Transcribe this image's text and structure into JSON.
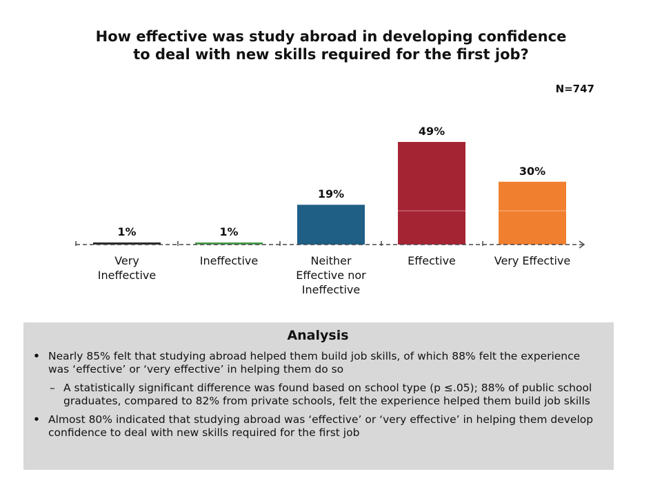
{
  "title_line1": "How effective was study abroad in developing confidence",
  "title_line2": "to deal with new skills required for the first job?",
  "n_label": "N=747",
  "chart_data": {
    "type": "bar",
    "categories": [
      [
        "Very",
        "Ineffective"
      ],
      [
        "Ineffective"
      ],
      [
        "Neither",
        "Effective nor",
        "Ineffective"
      ],
      [
        "Effective"
      ],
      [
        "Very Effective"
      ]
    ],
    "values": [
      1,
      1,
      19,
      49,
      30
    ],
    "value_labels": [
      "1%",
      "1%",
      "19%",
      "49%",
      "30%"
    ],
    "colors": [
      "#2a2a2a",
      "#4a9a4a",
      "#1f5f86",
      "#a52434",
      "#f07f2f"
    ],
    "ylim": [
      0,
      50
    ],
    "grid": false
  },
  "analysis": {
    "heading": "Analysis",
    "bullet1": "Nearly 85% felt that studying abroad helped them build job skills, of which 88% felt the experience was ‘effective’ or ‘very effective’ in helping them do so",
    "sub1": "A statistically significant difference was found based on school type (p ≤.05); 88% of public school graduates, compared to 82% from private schools, felt the experience helped them build job skills",
    "bullet2": "Almost 80% indicated that studying abroad was ‘effective’ or ‘very effective’ in helping them develop confidence to deal with new skills required for the first job",
    "bullet_mark": "•",
    "sub_mark": "–"
  }
}
